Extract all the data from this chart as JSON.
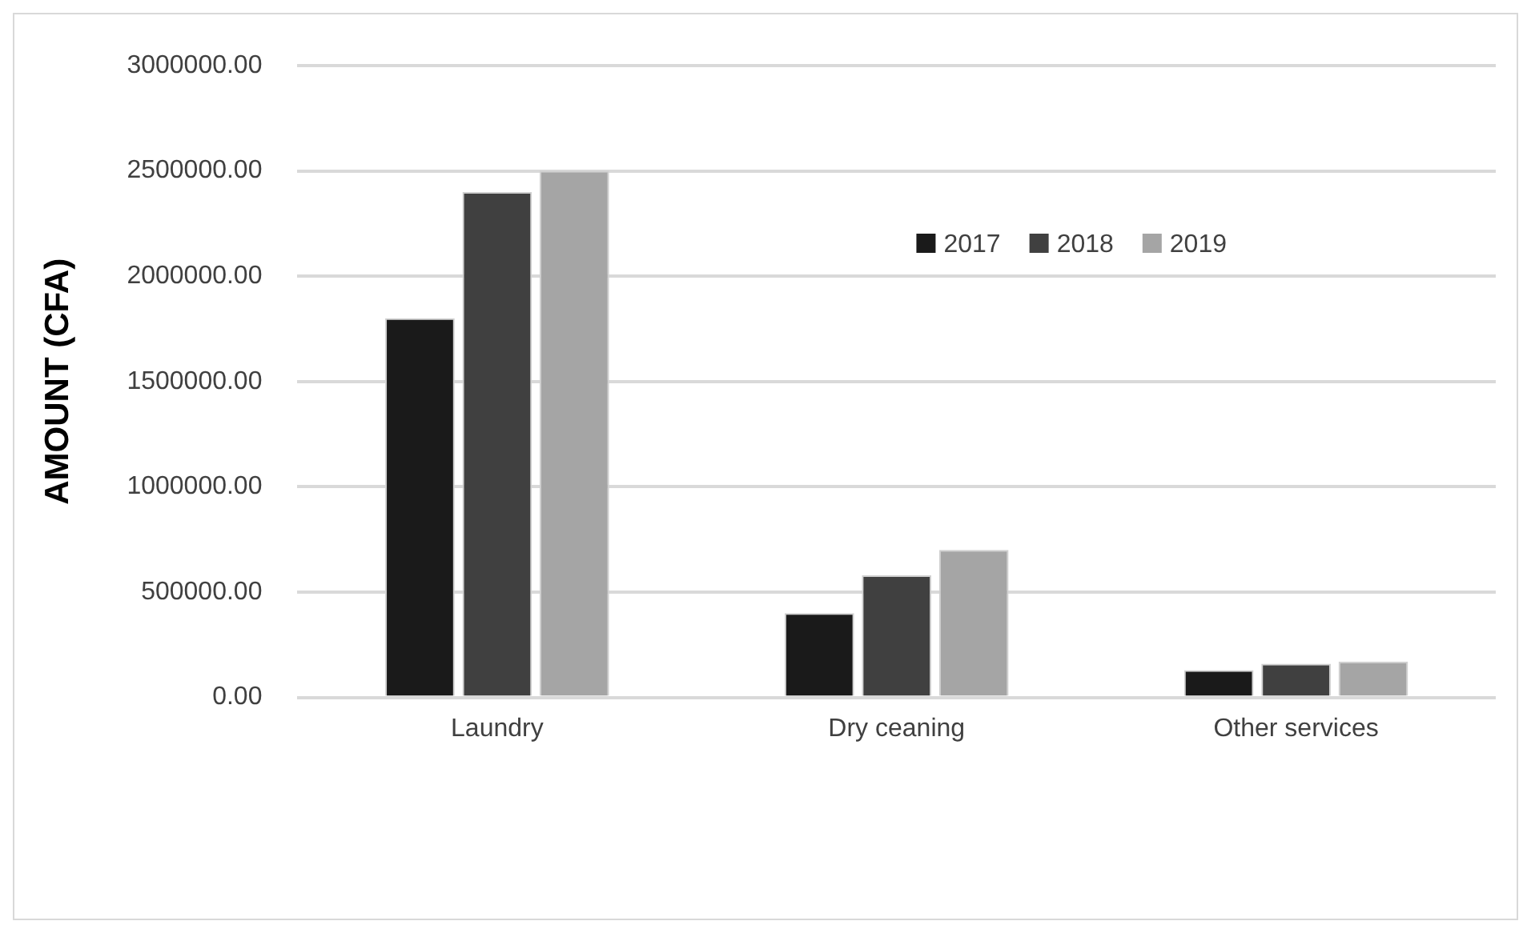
{
  "chart_data": {
    "type": "bar",
    "ylabel": "AMOUNT (CFA)",
    "categories": [
      "Laundry",
      "Dry ceaning",
      "Other services"
    ],
    "series": [
      {
        "name": "2017",
        "color": "#1a1a1a",
        "values": [
          1800000,
          400000,
          130000
        ]
      },
      {
        "name": "2018",
        "color": "#404040",
        "values": [
          2400000,
          580000,
          160000
        ]
      },
      {
        "name": "2019",
        "color": "#a5a5a5",
        "values": [
          2500000,
          700000,
          170000
        ]
      }
    ],
    "ylim": [
      0,
      3000000
    ],
    "yticks": [
      {
        "value": 0,
        "label": "0.00"
      },
      {
        "value": 500000,
        "label": "500000.00"
      },
      {
        "value": 1000000,
        "label": "1000000.00"
      },
      {
        "value": 1500000,
        "label": "1500000.00"
      },
      {
        "value": 2000000,
        "label": "2000000.00"
      },
      {
        "value": 2500000,
        "label": "2500000.00"
      },
      {
        "value": 3000000,
        "label": "3000000.00"
      }
    ],
    "grid": "y",
    "legend": "top right"
  }
}
